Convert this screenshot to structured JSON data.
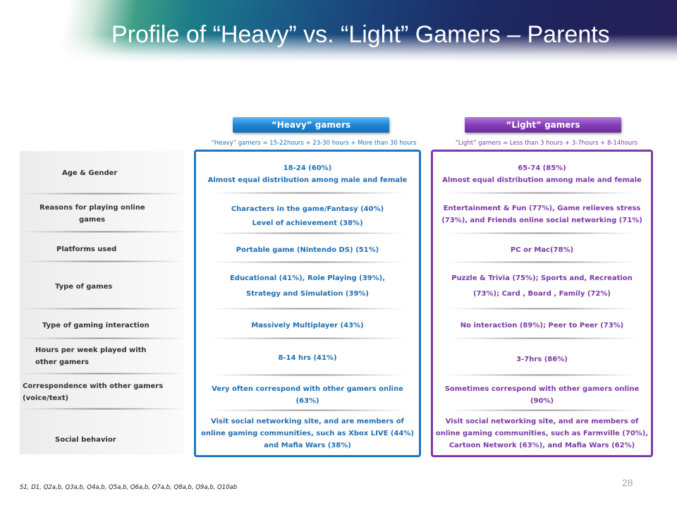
{
  "slide": {
    "title": "Profile of “Heavy” vs. “Light” Gamers – Parents",
    "page_number": "28",
    "footnote": "S1, D1, Q2a,b, Q3a,b, Q4a,b, Q5a,b, Q6a,b, Q7a,b, Q8a,b, Q9a,b, Q10ab"
  },
  "headers": {
    "heavy": "“Heavy” gamers",
    "light": "“Light” gamers",
    "heavy_note": "“Heavy” gamers = 15-22hours + 23-30 hours + More than 30 hours",
    "light_note": "“Light” gamers  = Less than 3 hours + 3-7hours + 8-14hours"
  },
  "rows": [
    {
      "label": "Age & Gender",
      "heavy": [
        "18-24 (60%)",
        "Almost equal distribution among male and female"
      ],
      "light": [
        "65-74 (85%)",
        "Almost equal distribution among male and female"
      ]
    },
    {
      "label": [
        "Reasons for playing online",
        "games"
      ],
      "heavy": [
        "Characters in the game/Fantasy (40%)",
        "Level of achievement  (38%)"
      ],
      "light": [
        "Entertainment & Fun (77%), Game relieves stress",
        "(73%), and Friends online social networking (71%)"
      ]
    },
    {
      "label": "Platforms used",
      "heavy": [
        "Portable game (Nintendo DS) (51%)"
      ],
      "light": [
        "PC or Mac(78%)"
      ]
    },
    {
      "label": "Type of games",
      "heavy": [
        "Educational  (41%), Role Playing  (39%),",
        "Strategy and Simulation  (39%)"
      ],
      "light": [
        "Puzzle & Trivia  (75%); Sports and, Recreation",
        "(73%); Card ,  Board ,  Family (72%)"
      ]
    },
    {
      "label": "Type of gaming interaction",
      "heavy": [
        "Massively  Multiplayer   (43%)"
      ],
      "light": [
        "No interaction (89%); Peer to Peer (73%)"
      ]
    },
    {
      "label": [
        "Hours per week played with",
        "other gamers"
      ],
      "heavy": [
        "8-14 hrs (41%)"
      ],
      "light": [
        "3-7hrs  (86%)"
      ]
    },
    {
      "label": [
        "Correspondence with other gamers",
        "(voice/text)"
      ],
      "heavy": [
        "Very often correspond with other gamers online",
        "(63%)"
      ],
      "light": [
        "Sometimes correspond with other gamers online",
        "(90%)"
      ]
    },
    {
      "label": "Social behavior",
      "heavy": [
        "Visit social  networking site, and are members of",
        "online gaming communities, such as Xbox LIVE (44%)",
        "and Mafia Wars  (38%)"
      ],
      "light": [
        "Visit social  networking site, and are members of",
        "online gaming communities, such as  Farmville (70%),",
        "Cartoon Network (63%), and Mafia Wars  (62%)"
      ]
    }
  ],
  "colors": {
    "heavy_accent": "#1f74c2",
    "light_accent": "#7a3aa8"
  }
}
